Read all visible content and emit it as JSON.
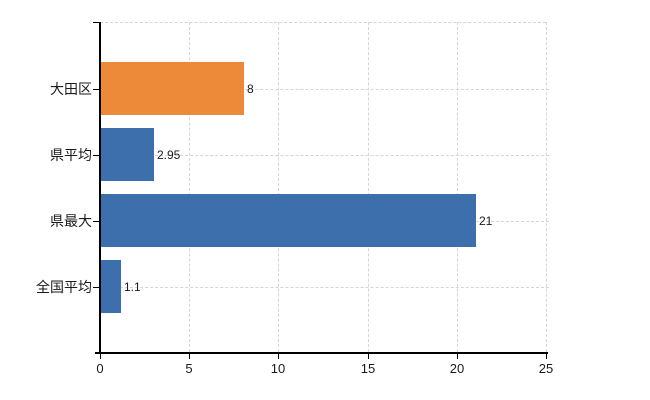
{
  "chart_data": {
    "type": "bar",
    "orientation": "horizontal",
    "title": "",
    "xlabel": "",
    "ylabel": "",
    "categories": [
      "大田区",
      "県平均",
      "県最大",
      "全国平均"
    ],
    "values": [
      8,
      2.95,
      21,
      1.1
    ],
    "value_labels": [
      "8",
      "2.95",
      "21",
      "1.1"
    ],
    "bar_colors": [
      "#ec8a3a",
      "#3c6fac",
      "#3c6fac",
      "#3c6fac"
    ],
    "x_ticks": [
      0,
      5,
      10,
      15,
      20,
      25
    ],
    "x_tick_labels": [
      "0",
      "5",
      "10",
      "15",
      "20",
      "25"
    ],
    "xlim": [
      0,
      25
    ],
    "grid": "dashed",
    "legend": "none",
    "colors": {
      "accent_orange": "#ec8a3a",
      "accent_blue": "#3c6fac",
      "grid_color": "#d5d5d6",
      "axis_color": "#000000",
      "text_color": "#1a1a1a",
      "background": "#ffffff"
    }
  }
}
